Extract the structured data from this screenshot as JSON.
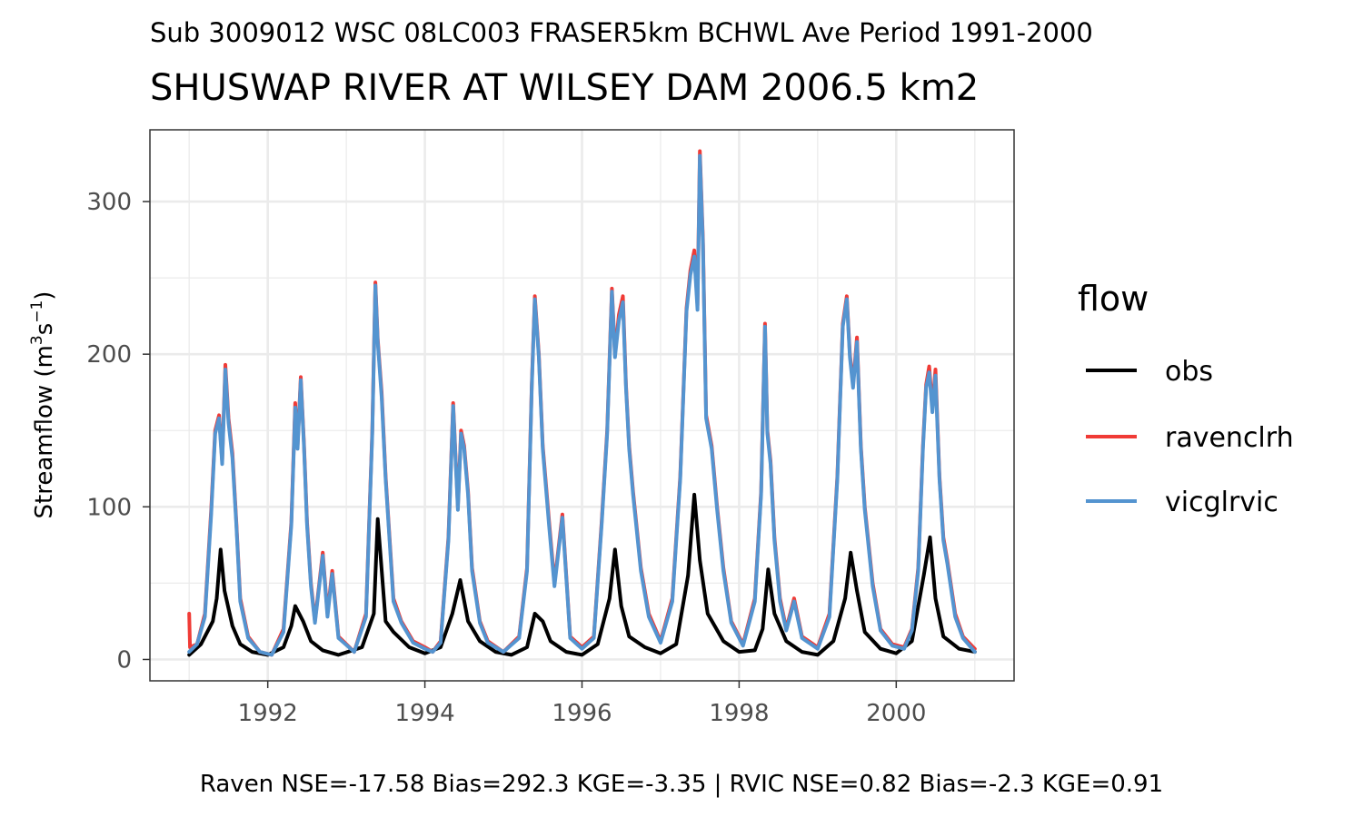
{
  "subtitle": "Sub 3009012 WSC 08LC003 FRASER5km BCHWL Ave Period 1991-2000",
  "title": "SHUSWAP RIVER AT WILSEY DAM 2006.5 km2",
  "caption": "Raven NSE=-17.58 Bias=292.3 KGE=-3.35 | RVIC NSE=0.82 Bias=-2.3 KGE=0.91",
  "ylabel_main": "Streamflow (m",
  "ylabel_sup1": "3",
  "ylabel_mid": "s",
  "ylabel_sup2": "−1",
  "ylabel_end": ")",
  "legend": {
    "title": "flow",
    "items": [
      {
        "label": "obs",
        "color": "#000000"
      },
      {
        "label": "ravenclrh",
        "color": "#f03b36"
      },
      {
        "label": "vicglrvic",
        "color": "#5494d0"
      }
    ]
  },
  "chart_data": {
    "type": "line",
    "title": "SHUSWAP RIVER AT WILSEY DAM 2006.5 km2",
    "subtitle": "Sub 3009012 WSC 08LC003 FRASER5km BCHWL Ave Period 1991-2000",
    "xlabel": "",
    "ylabel": "Streamflow (m3s-1)",
    "xlim": [
      1990.5,
      2001.5
    ],
    "ylim": [
      -14,
      347
    ],
    "x_ticks": [
      1992,
      1994,
      1996,
      1998,
      2000
    ],
    "y_ticks": [
      0,
      100,
      200,
      300
    ],
    "grid": true,
    "legend_position": "right",
    "series": [
      {
        "name": "obs",
        "color": "#000000",
        "x": [
          1991.0,
          1991.15,
          1991.3,
          1991.35,
          1991.4,
          1991.45,
          1991.55,
          1991.65,
          1991.8,
          1992.0,
          1992.2,
          1992.3,
          1992.35,
          1992.45,
          1992.55,
          1992.7,
          1992.9,
          1993.2,
          1993.35,
          1993.4,
          1993.5,
          1993.6,
          1993.8,
          1994.0,
          1994.2,
          1994.35,
          1994.45,
          1994.55,
          1994.7,
          1994.9,
          1995.1,
          1995.3,
          1995.4,
          1995.5,
          1995.6,
          1995.8,
          1996.0,
          1996.2,
          1996.35,
          1996.42,
          1996.5,
          1996.6,
          1996.8,
          1997.0,
          1997.2,
          1997.35,
          1997.43,
          1997.5,
          1997.6,
          1997.8,
          1998.0,
          1998.2,
          1998.3,
          1998.37,
          1998.45,
          1998.6,
          1998.8,
          1999.0,
          1999.2,
          1999.35,
          1999.42,
          1999.5,
          1999.6,
          1999.8,
          2000.0,
          2000.2,
          2000.35,
          2000.43,
          2000.5,
          2000.6,
          2000.8,
          2001.0
        ],
        "y": [
          3,
          10,
          25,
          40,
          72,
          45,
          22,
          10,
          5,
          3,
          8,
          22,
          35,
          25,
          12,
          6,
          3,
          8,
          30,
          92,
          25,
          18,
          8,
          4,
          8,
          30,
          52,
          25,
          12,
          5,
          3,
          8,
          30,
          25,
          12,
          5,
          3,
          10,
          40,
          72,
          35,
          15,
          8,
          4,
          10,
          55,
          108,
          65,
          30,
          12,
          5,
          6,
          20,
          59,
          30,
          12,
          5,
          3,
          12,
          40,
          70,
          45,
          18,
          7,
          4,
          12,
          55,
          80,
          40,
          15,
          7,
          5
        ]
      },
      {
        "name": "ravenclrh",
        "color": "#f03b36",
        "x": [
          1991.0,
          1991.01,
          1991.1,
          1991.2,
          1991.28,
          1991.33,
          1991.38,
          1991.42,
          1991.46,
          1991.5,
          1991.55,
          1991.6,
          1991.65,
          1991.75,
          1991.9,
          1992.05,
          1992.2,
          1992.3,
          1992.35,
          1992.38,
          1992.42,
          1992.46,
          1992.5,
          1992.55,
          1992.6,
          1992.7,
          1992.76,
          1992.82,
          1992.9,
          1993.1,
          1993.25,
          1993.33,
          1993.37,
          1993.4,
          1993.45,
          1993.5,
          1993.55,
          1993.6,
          1993.7,
          1993.85,
          1994.0,
          1994.1,
          1994.2,
          1994.3,
          1994.36,
          1994.42,
          1994.46,
          1994.5,
          1994.55,
          1994.6,
          1994.7,
          1994.8,
          1995.0,
          1995.2,
          1995.3,
          1995.36,
          1995.4,
          1995.45,
          1995.5,
          1995.58,
          1995.65,
          1995.75,
          1995.85,
          1996.0,
          1996.15,
          1996.25,
          1996.32,
          1996.38,
          1996.42,
          1996.47,
          1996.52,
          1996.56,
          1996.6,
          1996.65,
          1996.75,
          1996.85,
          1997.0,
          1997.15,
          1997.25,
          1997.33,
          1997.38,
          1997.43,
          1997.47,
          1997.5,
          1997.54,
          1997.58,
          1997.65,
          1997.72,
          1997.8,
          1997.9,
          1998.05,
          1998.2,
          1998.28,
          1998.33,
          1998.36,
          1998.4,
          1998.45,
          1998.52,
          1998.6,
          1998.7,
          1998.8,
          1999.0,
          1999.15,
          1999.25,
          1999.32,
          1999.37,
          1999.41,
          1999.45,
          1999.5,
          1999.55,
          1999.6,
          1999.7,
          1999.8,
          1999.95,
          2000.1,
          2000.2,
          2000.28,
          2000.34,
          2000.38,
          2000.42,
          2000.46,
          2000.5,
          2000.55,
          2000.6,
          2000.65,
          2000.75,
          2000.85,
          2001.0
        ],
        "y": [
          30,
          8,
          10,
          30,
          98,
          150,
          160,
          130,
          193,
          158,
          135,
          90,
          40,
          15,
          5,
          3,
          20,
          90,
          168,
          140,
          185,
          142,
          90,
          50,
          25,
          70,
          30,
          58,
          15,
          5,
          30,
          150,
          247,
          210,
          175,
          120,
          80,
          40,
          25,
          12,
          8,
          5,
          12,
          80,
          168,
          100,
          150,
          140,
          110,
          60,
          25,
          12,
          5,
          15,
          60,
          180,
          238,
          200,
          140,
          91,
          50,
          95,
          15,
          8,
          15,
          90,
          150,
          243,
          200,
          226,
          238,
          180,
          140,
          110,
          60,
          30,
          12,
          40,
          120,
          230,
          255,
          268,
          232,
          333,
          275,
          160,
          140,
          100,
          60,
          25,
          10,
          40,
          110,
          220,
          150,
          130,
          80,
          40,
          20,
          40,
          15,
          8,
          30,
          120,
          220,
          238,
          200,
          180,
          211,
          140,
          100,
          50,
          20,
          10,
          8,
          20,
          60,
          140,
          180,
          192,
          165,
          190,
          120,
          80,
          65,
          30,
          15,
          7
        ]
      },
      {
        "name": "vicglrvic",
        "color": "#5494d0",
        "x": [
          1991.0,
          1991.1,
          1991.2,
          1991.28,
          1991.33,
          1991.38,
          1991.42,
          1991.46,
          1991.5,
          1991.55,
          1991.6,
          1991.65,
          1991.75,
          1991.9,
          1992.05,
          1992.2,
          1992.3,
          1992.35,
          1992.38,
          1992.42,
          1992.46,
          1992.5,
          1992.55,
          1992.6,
          1992.7,
          1992.76,
          1992.82,
          1992.9,
          1993.1,
          1993.25,
          1993.33,
          1993.37,
          1993.4,
          1993.45,
          1993.5,
          1993.55,
          1993.6,
          1993.7,
          1993.85,
          1994.0,
          1994.1,
          1994.2,
          1994.3,
          1994.36,
          1994.42,
          1994.46,
          1994.5,
          1994.55,
          1994.6,
          1994.7,
          1994.8,
          1995.0,
          1995.2,
          1995.3,
          1995.36,
          1995.4,
          1995.45,
          1995.5,
          1995.58,
          1995.65,
          1995.75,
          1995.85,
          1996.0,
          1996.15,
          1996.25,
          1996.32,
          1996.38,
          1996.42,
          1996.47,
          1996.52,
          1996.56,
          1996.6,
          1996.65,
          1996.75,
          1996.85,
          1997.0,
          1997.15,
          1997.25,
          1997.33,
          1997.38,
          1997.43,
          1997.47,
          1997.5,
          1997.54,
          1997.58,
          1997.65,
          1997.72,
          1997.8,
          1997.9,
          1998.05,
          1998.2,
          1998.28,
          1998.33,
          1998.36,
          1998.4,
          1998.45,
          1998.52,
          1998.6,
          1998.7,
          1998.8,
          1999.0,
          1999.15,
          1999.25,
          1999.32,
          1999.37,
          1999.41,
          1999.45,
          1999.5,
          1999.55,
          1999.6,
          1999.7,
          1999.8,
          1999.95,
          2000.1,
          2000.2,
          2000.28,
          2000.34,
          2000.38,
          2000.42,
          2000.46,
          2000.5,
          2000.55,
          2000.6,
          2000.65,
          2000.75,
          2000.85,
          2001.0
        ],
        "y": [
          5,
          10,
          28,
          95,
          148,
          158,
          128,
          190,
          155,
          132,
          88,
          38,
          14,
          5,
          3,
          18,
          88,
          165,
          138,
          183,
          140,
          88,
          48,
          24,
          68,
          28,
          56,
          14,
          5,
          28,
          148,
          245,
          208,
          172,
          118,
          78,
          38,
          24,
          11,
          7,
          5,
          11,
          78,
          166,
          98,
          148,
          138,
          108,
          58,
          24,
          11,
          5,
          14,
          58,
          178,
          236,
          198,
          138,
          88,
          48,
          93,
          14,
          7,
          14,
          88,
          148,
          241,
          198,
          222,
          234,
          178,
          138,
          108,
          58,
          28,
          11,
          38,
          118,
          228,
          252,
          264,
          229,
          330,
          272,
          158,
          138,
          98,
          58,
          24,
          9,
          38,
          108,
          218,
          148,
          128,
          78,
          38,
          19,
          38,
          14,
          7,
          28,
          118,
          218,
          236,
          198,
          178,
          208,
          138,
          98,
          48,
          19,
          9,
          7,
          19,
          58,
          138,
          178,
          188,
          162,
          186,
          118,
          78,
          63,
          28,
          14,
          5
        ]
      }
    ]
  }
}
